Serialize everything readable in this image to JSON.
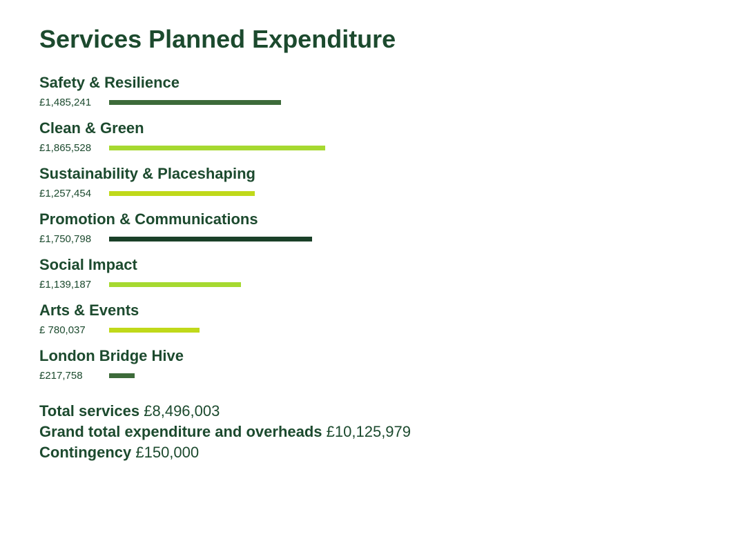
{
  "chart_data": {
    "type": "bar",
    "orientation": "horizontal",
    "title": "Services Planned Expenditure",
    "categories": [
      "Safety & Resilience",
      "Clean & Green",
      "Sustainability & Placeshaping",
      "Promotion & Communications",
      "Social Impact",
      "Arts & Events",
      "London Bridge Hive"
    ],
    "values": [
      1485241,
      1865528,
      1257454,
      1750798,
      1139187,
      780037,
      217758
    ],
    "value_labels": [
      "£1,485,241",
      "£1,865,528",
      "£1,257,454",
      "£1,750,798",
      "£1,139,187",
      "£ 780,037",
      "£217,758"
    ],
    "bar_colors": [
      "#3d6b3a",
      "#a6d930",
      "#c0d91a",
      "#1a4028",
      "#a6d930",
      "#c0d91a",
      "#3d6b3a"
    ],
    "xlim": [
      0,
      1865528
    ],
    "xlabel": "",
    "ylabel": ""
  },
  "totals": [
    {
      "label": "Total services",
      "value": "£8,496,003"
    },
    {
      "label": "Grand total expenditure and overheads",
      "value": "£10,125,979"
    },
    {
      "label": "Contingency",
      "value": "£150,000"
    }
  ]
}
